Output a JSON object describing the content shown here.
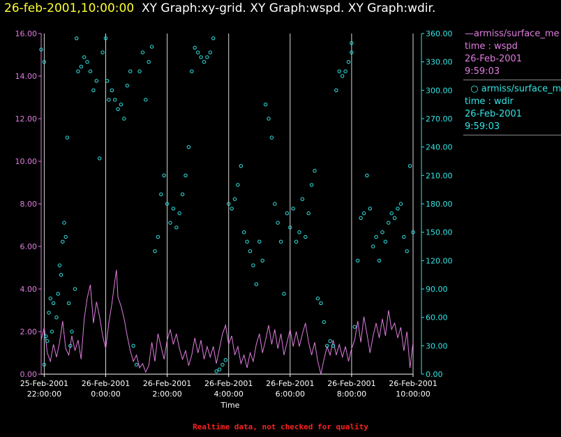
{
  "header": {
    "timestamp": "26-feb-2001,10:00:00",
    "graphs": "XY Graph:xy-grid.  XY Graph:wspd.  XY Graph:wdir."
  },
  "legend": {
    "wspd": {
      "name": "armiss/surface_me",
      "line1": "time : wspd",
      "line2": "26-Feb-2001",
      "line3": "9:59:03",
      "color": "#e07de0"
    },
    "wdir": {
      "name": "armiss/surface_me",
      "line1": "time : wdir",
      "line2": "26-Feb-2001",
      "line3": "9:59:03",
      "color": "#33e6e6"
    }
  },
  "footnote": "Realtime data, not checked for quality",
  "chart_data": {
    "type": "line",
    "xlabel": "Time",
    "x_range_hours": [
      -2.1,
      10.0
    ],
    "x_ticks": [
      {
        "h": -2,
        "date": "25-Feb-2001",
        "time": "22:00:00"
      },
      {
        "h": 0,
        "date": "26-Feb-2001",
        "time": "0:00:00"
      },
      {
        "h": 2,
        "date": "26-Feb-2001",
        "time": "2:00:00"
      },
      {
        "h": 4,
        "date": "26-Feb-2001",
        "time": "4:00:00"
      },
      {
        "h": 6,
        "date": "26-Feb-2001",
        "time": "6:00:00"
      },
      {
        "h": 8,
        "date": "26-Feb-2001",
        "time": "8:00:00"
      },
      {
        "h": 10,
        "date": "26-Feb-2001",
        "time": "10:00:00"
      }
    ],
    "y_left": {
      "range": [
        0,
        16
      ],
      "ticks": [
        "0.00",
        "2.00",
        "4.00",
        "6.00",
        "8.00",
        "10.00",
        "12.00",
        "14.00",
        "16.00"
      ],
      "color": "#e07de0"
    },
    "y_right": {
      "range": [
        0,
        360
      ],
      "ticks": [
        "0.00",
        "30.00",
        "60.00",
        "90.00",
        "120.00",
        "150.00",
        "180.00",
        "210.00",
        "240.00",
        "270.00",
        "300.00",
        "330.00",
        "360.00"
      ],
      "color": "#33e6e6"
    },
    "grid": "vertical lines at tick hours",
    "series": [
      {
        "name": "armiss/surface_me time : wspd",
        "axis": "left",
        "style": "line",
        "color": "#e07de0",
        "points": [
          [
            -2.1,
            1.6
          ],
          [
            -2.0,
            2.2
          ],
          [
            -1.9,
            1.0
          ],
          [
            -1.8,
            0.6
          ],
          [
            -1.7,
            1.4
          ],
          [
            -1.6,
            0.8
          ],
          [
            -1.5,
            1.5
          ],
          [
            -1.4,
            2.5
          ],
          [
            -1.3,
            1.2
          ],
          [
            -1.2,
            0.9
          ],
          [
            -1.1,
            1.8
          ],
          [
            -1.0,
            1.1
          ],
          [
            -0.9,
            1.6
          ],
          [
            -0.8,
            0.7
          ],
          [
            -0.7,
            2.6
          ],
          [
            -0.6,
            3.6
          ],
          [
            -0.5,
            4.2
          ],
          [
            -0.4,
            2.4
          ],
          [
            -0.3,
            3.4
          ],
          [
            -0.2,
            2.7
          ],
          [
            -0.1,
            1.8
          ],
          [
            0.0,
            1.2
          ],
          [
            0.1,
            2.4
          ],
          [
            0.2,
            3.3
          ],
          [
            0.3,
            4.4
          ],
          [
            0.35,
            4.9
          ],
          [
            0.4,
            3.6
          ],
          [
            0.5,
            3.2
          ],
          [
            0.6,
            2.6
          ],
          [
            0.7,
            1.8
          ],
          [
            0.8,
            1.1
          ],
          [
            0.9,
            0.6
          ],
          [
            1.0,
            0.9
          ],
          [
            1.1,
            0.3
          ],
          [
            1.2,
            0.5
          ],
          [
            1.3,
            0.1
          ],
          [
            1.4,
            0.4
          ],
          [
            1.5,
            1.5
          ],
          [
            1.6,
            0.6
          ],
          [
            1.7,
            1.9
          ],
          [
            1.8,
            1.3
          ],
          [
            1.9,
            0.7
          ],
          [
            2.0,
            1.6
          ],
          [
            2.1,
            2.1
          ],
          [
            2.2,
            1.4
          ],
          [
            2.3,
            1.9
          ],
          [
            2.4,
            1.2
          ],
          [
            2.5,
            0.7
          ],
          [
            2.6,
            1.1
          ],
          [
            2.7,
            0.4
          ],
          [
            2.8,
            0.9
          ],
          [
            2.9,
            1.7
          ],
          [
            3.0,
            1.0
          ],
          [
            3.1,
            1.6
          ],
          [
            3.2,
            0.7
          ],
          [
            3.3,
            1.3
          ],
          [
            3.4,
            0.8
          ],
          [
            3.5,
            1.3
          ],
          [
            3.6,
            0.5
          ],
          [
            3.7,
            1.2
          ],
          [
            3.8,
            1.9
          ],
          [
            3.9,
            2.3
          ],
          [
            4.0,
            1.4
          ],
          [
            4.1,
            1.8
          ],
          [
            4.2,
            0.9
          ],
          [
            4.3,
            1.3
          ],
          [
            4.4,
            0.5
          ],
          [
            4.5,
            0.9
          ],
          [
            4.6,
            0.3
          ],
          [
            4.7,
            1.0
          ],
          [
            4.8,
            0.6
          ],
          [
            4.9,
            1.4
          ],
          [
            5.0,
            1.9
          ],
          [
            5.1,
            1.0
          ],
          [
            5.2,
            1.6
          ],
          [
            5.3,
            2.3
          ],
          [
            5.4,
            1.4
          ],
          [
            5.5,
            2.1
          ],
          [
            5.6,
            1.2
          ],
          [
            5.7,
            1.9
          ],
          [
            5.8,
            0.9
          ],
          [
            5.9,
            1.5
          ],
          [
            6.0,
            2.1
          ],
          [
            6.1,
            1.3
          ],
          [
            6.2,
            2.0
          ],
          [
            6.3,
            1.3
          ],
          [
            6.4,
            1.9
          ],
          [
            6.5,
            2.4
          ],
          [
            6.6,
            1.5
          ],
          [
            6.7,
            0.9
          ],
          [
            6.8,
            1.5
          ],
          [
            6.9,
            0.6
          ],
          [
            7.0,
            0.0
          ],
          [
            7.1,
            0.7
          ],
          [
            7.2,
            1.3
          ],
          [
            7.3,
            0.9
          ],
          [
            7.4,
            1.6
          ],
          [
            7.5,
            0.9
          ],
          [
            7.6,
            1.4
          ],
          [
            7.7,
            0.8
          ],
          [
            7.8,
            1.3
          ],
          [
            7.9,
            0.6
          ],
          [
            8.0,
            1.2
          ],
          [
            8.1,
            1.6
          ],
          [
            8.2,
            2.5
          ],
          [
            8.3,
            1.5
          ],
          [
            8.4,
            2.7
          ],
          [
            8.5,
            1.9
          ],
          [
            8.6,
            1.0
          ],
          [
            8.7,
            1.8
          ],
          [
            8.8,
            2.4
          ],
          [
            8.9,
            1.7
          ],
          [
            9.0,
            2.6
          ],
          [
            9.1,
            1.8
          ],
          [
            9.2,
            3.0
          ],
          [
            9.3,
            2.1
          ],
          [
            9.4,
            2.4
          ],
          [
            9.5,
            1.7
          ],
          [
            9.6,
            2.2
          ],
          [
            9.7,
            1.1
          ],
          [
            9.8,
            2.0
          ],
          [
            9.9,
            0.3
          ],
          [
            10.0,
            1.5
          ]
        ]
      },
      {
        "name": "armiss/surface_me time : wdir",
        "axis": "right",
        "style": "circles",
        "color": "#33e6e6",
        "points": [
          [
            -2.1,
            343
          ],
          [
            -2.0,
            330
          ],
          [
            -2.0,
            10
          ],
          [
            -1.95,
            40
          ],
          [
            -1.9,
            35
          ],
          [
            -1.85,
            65
          ],
          [
            -1.8,
            80
          ],
          [
            -1.75,
            45
          ],
          [
            -1.7,
            75
          ],
          [
            -1.6,
            60
          ],
          [
            -1.55,
            85
          ],
          [
            -1.5,
            115
          ],
          [
            -1.45,
            105
          ],
          [
            -1.4,
            140
          ],
          [
            -1.35,
            160
          ],
          [
            -1.3,
            145
          ],
          [
            -1.25,
            250
          ],
          [
            -1.2,
            75
          ],
          [
            -1.15,
            30
          ],
          [
            -1.1,
            45
          ],
          [
            -1.0,
            90
          ],
          [
            -0.95,
            355
          ],
          [
            -0.9,
            320
          ],
          [
            -0.8,
            325
          ],
          [
            -0.7,
            335
          ],
          [
            -0.6,
            330
          ],
          [
            -0.5,
            320
          ],
          [
            -0.4,
            300
          ],
          [
            -0.3,
            310
          ],
          [
            -0.2,
            228
          ],
          [
            -0.1,
            340
          ],
          [
            0.0,
            355
          ],
          [
            0.05,
            310
          ],
          [
            0.1,
            290
          ],
          [
            0.2,
            300
          ],
          [
            0.3,
            290
          ],
          [
            0.4,
            280
          ],
          [
            0.5,
            285
          ],
          [
            0.6,
            270
          ],
          [
            0.7,
            305
          ],
          [
            0.8,
            320
          ],
          [
            0.9,
            30
          ],
          [
            1.0,
            10
          ],
          [
            1.1,
            320
          ],
          [
            1.2,
            340
          ],
          [
            1.3,
            290
          ],
          [
            1.4,
            330
          ],
          [
            1.5,
            346
          ],
          [
            1.6,
            130
          ],
          [
            1.7,
            145
          ],
          [
            1.8,
            190
          ],
          [
            1.9,
            210
          ],
          [
            2.0,
            180
          ],
          [
            2.1,
            160
          ],
          [
            2.2,
            175
          ],
          [
            2.3,
            155
          ],
          [
            2.4,
            170
          ],
          [
            2.5,
            190
          ],
          [
            2.6,
            210
          ],
          [
            2.7,
            240
          ],
          [
            2.8,
            320
          ],
          [
            2.9,
            345
          ],
          [
            3.0,
            340
          ],
          [
            3.1,
            335
          ],
          [
            3.2,
            330
          ],
          [
            3.3,
            335
          ],
          [
            3.4,
            340
          ],
          [
            3.5,
            355
          ],
          [
            3.6,
            3
          ],
          [
            3.7,
            5
          ],
          [
            3.8,
            10
          ],
          [
            3.9,
            15
          ],
          [
            4.0,
            180
          ],
          [
            4.1,
            175
          ],
          [
            4.2,
            185
          ],
          [
            4.3,
            200
          ],
          [
            4.4,
            220
          ],
          [
            4.5,
            150
          ],
          [
            4.6,
            140
          ],
          [
            4.7,
            130
          ],
          [
            4.8,
            115
          ],
          [
            4.9,
            95
          ],
          [
            5.0,
            140
          ],
          [
            5.1,
            120
          ],
          [
            5.2,
            285
          ],
          [
            5.3,
            270
          ],
          [
            5.4,
            250
          ],
          [
            5.5,
            180
          ],
          [
            5.6,
            160
          ],
          [
            5.7,
            140
          ],
          [
            5.8,
            85
          ],
          [
            5.9,
            170
          ],
          [
            6.0,
            155
          ],
          [
            6.1,
            175
          ],
          [
            6.2,
            140
          ],
          [
            6.3,
            150
          ],
          [
            6.4,
            185
          ],
          [
            6.5,
            145
          ],
          [
            6.6,
            170
          ],
          [
            6.7,
            200
          ],
          [
            6.8,
            215
          ],
          [
            6.9,
            80
          ],
          [
            7.0,
            75
          ],
          [
            7.1,
            55
          ],
          [
            7.2,
            30
          ],
          [
            7.3,
            35
          ],
          [
            7.4,
            30
          ],
          [
            7.5,
            300
          ],
          [
            7.6,
            320
          ],
          [
            7.7,
            315
          ],
          [
            7.8,
            320
          ],
          [
            7.9,
            330
          ],
          [
            8.0,
            340
          ],
          [
            8.0,
            350
          ],
          [
            8.1,
            50
          ],
          [
            8.2,
            120
          ],
          [
            8.3,
            165
          ],
          [
            8.4,
            170
          ],
          [
            8.5,
            210
          ],
          [
            8.6,
            175
          ],
          [
            8.7,
            135
          ],
          [
            8.8,
            145
          ],
          [
            8.9,
            120
          ],
          [
            9.0,
            150
          ],
          [
            9.1,
            140
          ],
          [
            9.2,
            160
          ],
          [
            9.3,
            170
          ],
          [
            9.4,
            165
          ],
          [
            9.5,
            175
          ],
          [
            9.6,
            180
          ],
          [
            9.7,
            145
          ],
          [
            9.8,
            130
          ],
          [
            9.9,
            220
          ],
          [
            10.0,
            150
          ]
        ]
      }
    ]
  }
}
